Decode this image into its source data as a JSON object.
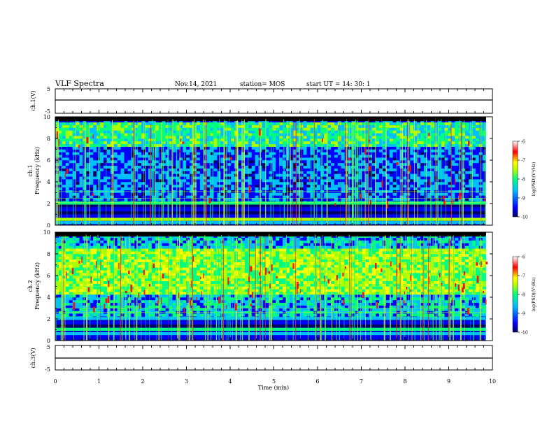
{
  "header": {
    "title": "VLF Spectra",
    "date": "Nov.14, 2021",
    "station": "station= MOS",
    "start": "start  UT =   14: 30: 1"
  },
  "chart_data": [
    {
      "type": "line",
      "name": "ch1-voltage",
      "ylabel": "ch.1(V)",
      "ylim": [
        -5,
        5
      ],
      "yticks": [
        "5",
        "-5"
      ],
      "x": [
        0,
        10
      ],
      "values": [
        0,
        0
      ]
    },
    {
      "type": "heatmap",
      "name": "ch1-spectrogram",
      "ylabel": "ch.1\nFrequency (kHz)",
      "ylim": [
        0,
        10
      ],
      "yticks": [
        "0",
        "2",
        "4",
        "6",
        "8",
        "10"
      ],
      "xlim": [
        0,
        10
      ],
      "data_extent_minutes": 9.85,
      "colorbar": {
        "label": "log(PSD)(V²/Hz)",
        "min": -10,
        "max": -6,
        "ticks": [
          "-6",
          "-7",
          "-8",
          "-9",
          "-10"
        ]
      },
      "colors": [
        "#000066",
        "#0000ff",
        "#00bfff",
        "#00ff80",
        "#b0ff00",
        "#ffff00",
        "#ff0000",
        "#ffffff"
      ]
    },
    {
      "type": "heatmap",
      "name": "ch2-spectrogram",
      "ylabel": "ch.2\nFrequency (kHz)",
      "ylim": [
        0,
        10
      ],
      "yticks": [
        "0",
        "2",
        "4",
        "6",
        "8",
        "10"
      ],
      "xlim": [
        0,
        10
      ],
      "data_extent_minutes": 9.85,
      "colorbar": {
        "label": "log(PSD)(V²/Hz)",
        "min": -10,
        "max": -6,
        "ticks": [
          "-6",
          "-7",
          "-8",
          "-9",
          "-10"
        ]
      },
      "colors": [
        "#000066",
        "#0000ff",
        "#00bfff",
        "#00ff80",
        "#b0ff00",
        "#ffff00",
        "#ff0000",
        "#ffffff"
      ]
    },
    {
      "type": "line",
      "name": "ch3-voltage",
      "ylabel": "ch.3(V)",
      "ylim": [
        -5,
        5
      ],
      "yticks": [
        "5",
        "-5"
      ],
      "x": [
        0,
        10
      ],
      "values": [
        0,
        0
      ]
    }
  ],
  "xaxis": {
    "label": "Time (min)",
    "ticks": [
      "0",
      "1",
      "2",
      "3",
      "4",
      "5",
      "6",
      "7",
      "8",
      "9",
      "10"
    ]
  }
}
